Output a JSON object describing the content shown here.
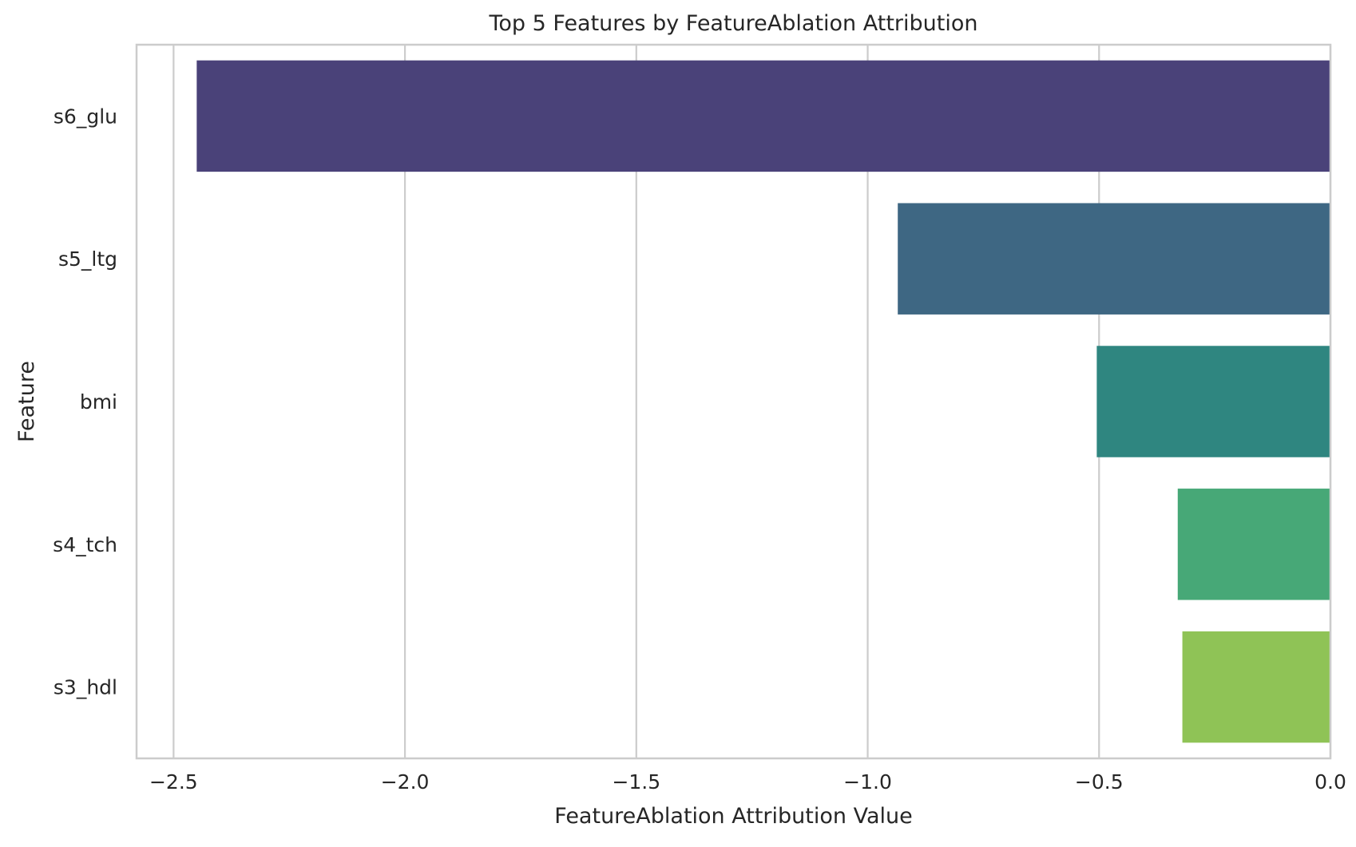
{
  "chart_data": {
    "type": "bar",
    "orientation": "horizontal",
    "title": "Top 5 Features by FeatureAblation Attribution",
    "xlabel": "FeatureAblation Attribution Value",
    "ylabel": "Feature",
    "categories": [
      "s6_glu",
      "s5_ltg",
      "bmi",
      "s4_tch",
      "s3_hdl"
    ],
    "values": [
      -2.45,
      -0.935,
      -0.505,
      -0.33,
      -0.32
    ],
    "colors": [
      "#4a4279",
      "#3e6783",
      "#2f8680",
      "#47a877",
      "#8fc356"
    ],
    "xlim": [
      -2.58,
      0.0
    ],
    "xticks": [
      -2.5,
      -2.0,
      -1.5,
      -1.0,
      -0.5,
      0.0
    ],
    "xtick_labels": [
      "−2.5",
      "−2.0",
      "−1.5",
      "−1.0",
      "−0.5",
      "0.0"
    ],
    "grid": "x",
    "legend": "none"
  }
}
